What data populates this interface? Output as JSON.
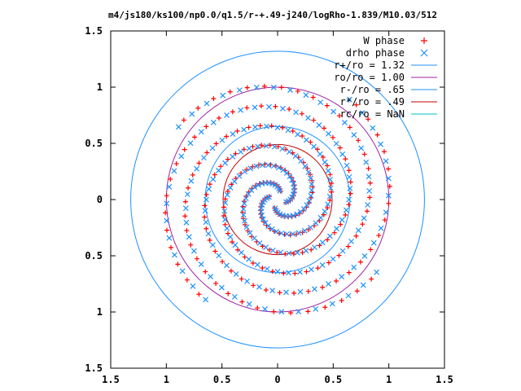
{
  "chart_data": {
    "type": "scatter",
    "title": "m4/js180/ks100/np0.0/q1.5/r-+.49-j240/logRho-1.839/M10.03/512",
    "xlim": [
      -1.5,
      1.5
    ],
    "ylim": [
      -1.5,
      1.5
    ],
    "x_ticks": [
      -1.5,
      -1,
      -0.5,
      0,
      0.5,
      1,
      1.5
    ],
    "y_ticks": [
      -1.5,
      -1,
      -0.5,
      0,
      0.5,
      1,
      1.5
    ],
    "x_tick_labels": [
      "1.5",
      "1",
      "0.5",
      "0",
      "0.5",
      "1",
      "1.5"
    ],
    "y_tick_labels": [
      "1.5",
      "1",
      "0.5",
      "0",
      "0.5",
      "1",
      "1.5"
    ],
    "grid": false,
    "legend_position": "top-right",
    "series": [
      {
        "name": "W phase",
        "kind": "points",
        "marker": "plus",
        "color": "#ff0000",
        "spiral": {
          "r_start": 0.08,
          "r_end": 1.1,
          "phase0": -20,
          "sweep": 520,
          "arms": 4,
          "n": 60
        }
      },
      {
        "name": "drho phase",
        "kind": "points",
        "marker": "cross",
        "color": "#1e90ff",
        "spiral": {
          "r_start": 0.08,
          "r_end": 1.1,
          "phase0": -16,
          "sweep": 520,
          "arms": 4,
          "n": 60
        }
      },
      {
        "name": "r+/ro = 1.32",
        "kind": "circle",
        "radius": 1.32,
        "color": "#1e90ff"
      },
      {
        "name": "ro/ro = 1.00",
        "kind": "circle",
        "radius": 1.0,
        "color": "#a020a0"
      },
      {
        "name": "r-/ro = .65",
        "kind": "circle",
        "radius": 0.65,
        "color": "#1e90ff"
      },
      {
        "name": "r*/ro = .49",
        "kind": "circle",
        "radius": 0.49,
        "color": "#c00000"
      },
      {
        "name": "rc/ro = NaN",
        "kind": "circle",
        "radius": null,
        "color": "#00c0c0"
      }
    ]
  }
}
